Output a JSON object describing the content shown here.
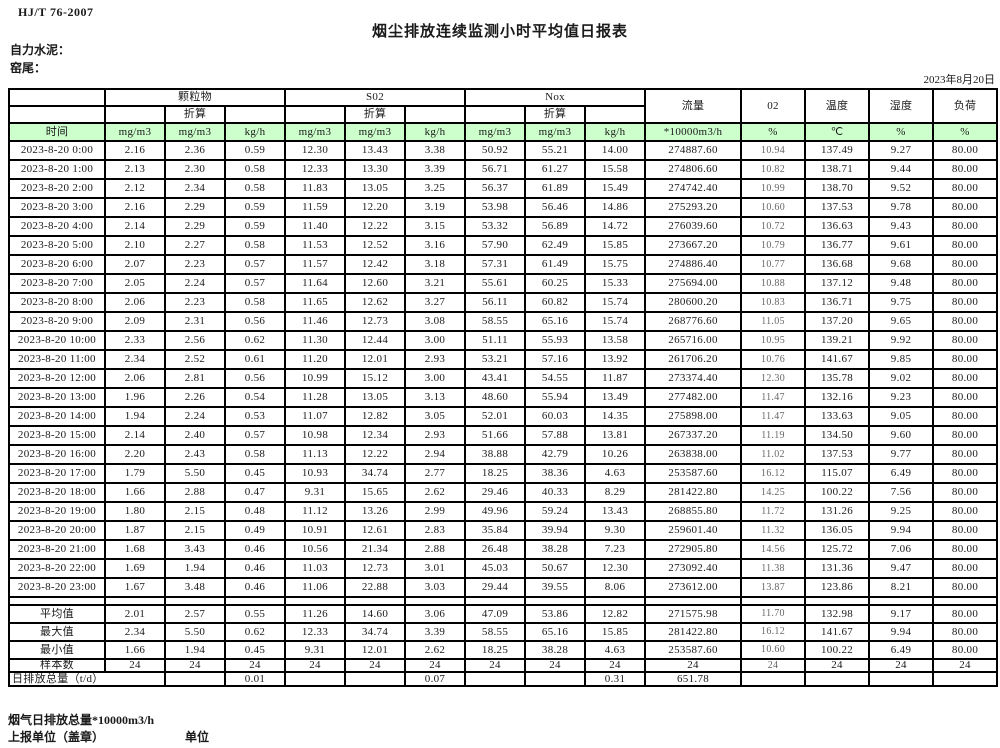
{
  "page": {
    "standard": "HJ/T 76-2007",
    "title": "烟尘排放连续监测小时平均值日报表",
    "company": "自力水泥：",
    "location": "窑尾：",
    "date": "2023年8月20日",
    "footer_total_line": "烟气日排放总量*10000m3/h",
    "footer_report_unit": "上报单位（盖章）",
    "footer_unit": "单位"
  },
  "table": {
    "header": {
      "time_label": "时间",
      "pm_group": "颗粒物",
      "so2_group": "S02",
      "nox_group": "Nox",
      "flow_group": "流量",
      "o2_group": "02",
      "temp_group": "温度",
      "humidity_group": "湿度",
      "load_group": "负荷",
      "converted_label": "折算"
    },
    "units_row": [
      "mg/m3",
      "mg/m3",
      "kg/h",
      "mg/m3",
      "mg/m3",
      "kg/h",
      "mg/m3",
      "mg/m3",
      "kg/h",
      "*10000m3/h",
      "%",
      "℃",
      "%",
      "%"
    ],
    "rows": [
      {
        "time": "2023-8-20 0:00",
        "values": [
          "2.16",
          "2.36",
          "0.59",
          "12.30",
          "13.43",
          "3.38",
          "50.92",
          "55.21",
          "14.00",
          "274887.60",
          "10.94",
          "137.49",
          "9.27",
          "80.00"
        ]
      },
      {
        "time": "2023-8-20 1:00",
        "values": [
          "2.13",
          "2.30",
          "0.58",
          "12.33",
          "13.30",
          "3.39",
          "56.71",
          "61.27",
          "15.58",
          "274806.60",
          "10.82",
          "138.71",
          "9.44",
          "80.00"
        ]
      },
      {
        "time": "2023-8-20 2:00",
        "values": [
          "2.12",
          "2.34",
          "0.58",
          "11.83",
          "13.05",
          "3.25",
          "56.37",
          "61.89",
          "15.49",
          "274742.40",
          "10.99",
          "138.70",
          "9.52",
          "80.00"
        ]
      },
      {
        "time": "2023-8-20 3:00",
        "values": [
          "2.16",
          "2.29",
          "0.59",
          "11.59",
          "12.20",
          "3.19",
          "53.98",
          "56.46",
          "14.86",
          "275293.20",
          "10.60",
          "137.53",
          "9.78",
          "80.00"
        ]
      },
      {
        "time": "2023-8-20 4:00",
        "values": [
          "2.14",
          "2.29",
          "0.59",
          "11.40",
          "12.22",
          "3.15",
          "53.32",
          "56.89",
          "14.72",
          "276039.60",
          "10.72",
          "136.63",
          "9.43",
          "80.00"
        ]
      },
      {
        "time": "2023-8-20 5:00",
        "values": [
          "2.10",
          "2.27",
          "0.58",
          "11.53",
          "12.52",
          "3.16",
          "57.90",
          "62.49",
          "15.85",
          "273667.20",
          "10.79",
          "136.77",
          "9.61",
          "80.00"
        ]
      },
      {
        "time": "2023-8-20 6:00",
        "values": [
          "2.07",
          "2.23",
          "0.57",
          "11.57",
          "12.42",
          "3.18",
          "57.31",
          "61.49",
          "15.75",
          "274886.40",
          "10.77",
          "136.68",
          "9.68",
          "80.00"
        ]
      },
      {
        "time": "2023-8-20 7:00",
        "values": [
          "2.05",
          "2.24",
          "0.57",
          "11.64",
          "12.60",
          "3.21",
          "55.61",
          "60.25",
          "15.33",
          "275694.00",
          "10.88",
          "137.12",
          "9.48",
          "80.00"
        ]
      },
      {
        "time": "2023-8-20 8:00",
        "values": [
          "2.06",
          "2.23",
          "0.58",
          "11.65",
          "12.62",
          "3.27",
          "56.11",
          "60.82",
          "15.74",
          "280600.20",
          "10.83",
          "136.71",
          "9.75",
          "80.00"
        ]
      },
      {
        "time": "2023-8-20 9:00",
        "values": [
          "2.09",
          "2.31",
          "0.56",
          "11.46",
          "12.73",
          "3.08",
          "58.55",
          "65.16",
          "15.74",
          "268776.60",
          "11.05",
          "137.20",
          "9.65",
          "80.00"
        ]
      },
      {
        "time": "2023-8-20 10:00",
        "values": [
          "2.33",
          "2.56",
          "0.62",
          "11.30",
          "12.44",
          "3.00",
          "51.11",
          "55.93",
          "13.58",
          "265716.00",
          "10.95",
          "139.21",
          "9.92",
          "80.00"
        ]
      },
      {
        "time": "2023-8-20 11:00",
        "values": [
          "2.34",
          "2.52",
          "0.61",
          "11.20",
          "12.01",
          "2.93",
          "53.21",
          "57.16",
          "13.92",
          "261706.20",
          "10.76",
          "141.67",
          "9.85",
          "80.00"
        ]
      },
      {
        "time": "2023-8-20 12:00",
        "values": [
          "2.06",
          "2.81",
          "0.56",
          "10.99",
          "15.12",
          "3.00",
          "43.41",
          "54.55",
          "11.87",
          "273374.40",
          "12.30",
          "135.78",
          "9.02",
          "80.00"
        ]
      },
      {
        "time": "2023-8-20 13:00",
        "values": [
          "1.96",
          "2.26",
          "0.54",
          "11.28",
          "13.05",
          "3.13",
          "48.60",
          "55.94",
          "13.49",
          "277482.00",
          "11.47",
          "132.16",
          "9.23",
          "80.00"
        ]
      },
      {
        "time": "2023-8-20 14:00",
        "values": [
          "1.94",
          "2.24",
          "0.53",
          "11.07",
          "12.82",
          "3.05",
          "52.01",
          "60.03",
          "14.35",
          "275898.00",
          "11.47",
          "133.63",
          "9.05",
          "80.00"
        ]
      },
      {
        "time": "2023-8-20 15:00",
        "values": [
          "2.14",
          "2.40",
          "0.57",
          "10.98",
          "12.34",
          "2.93",
          "51.66",
          "57.88",
          "13.81",
          "267337.20",
          "11.19",
          "134.50",
          "9.60",
          "80.00"
        ]
      },
      {
        "time": "2023-8-20 16:00",
        "values": [
          "2.20",
          "2.43",
          "0.58",
          "11.13",
          "12.22",
          "2.94",
          "38.88",
          "42.79",
          "10.26",
          "263838.00",
          "11.02",
          "137.53",
          "9.77",
          "80.00"
        ]
      },
      {
        "time": "2023-8-20 17:00",
        "values": [
          "1.79",
          "5.50",
          "0.45",
          "10.93",
          "34.74",
          "2.77",
          "18.25",
          "38.36",
          "4.63",
          "253587.60",
          "16.12",
          "115.07",
          "6.49",
          "80.00"
        ]
      },
      {
        "time": "2023-8-20 18:00",
        "values": [
          "1.66",
          "2.88",
          "0.47",
          "9.31",
          "15.65",
          "2.62",
          "29.46",
          "40.33",
          "8.29",
          "281422.80",
          "14.25",
          "100.22",
          "7.56",
          "80.00"
        ]
      },
      {
        "time": "2023-8-20 19:00",
        "values": [
          "1.80",
          "2.15",
          "0.48",
          "11.12",
          "13.26",
          "2.99",
          "49.96",
          "59.24",
          "13.43",
          "268855.80",
          "11.72",
          "131.26",
          "9.25",
          "80.00"
        ]
      },
      {
        "time": "2023-8-20 20:00",
        "values": [
          "1.87",
          "2.15",
          "0.49",
          "10.91",
          "12.61",
          "2.83",
          "35.84",
          "39.94",
          "9.30",
          "259601.40",
          "11.32",
          "136.05",
          "9.94",
          "80.00"
        ]
      },
      {
        "time": "2023-8-20 21:00",
        "values": [
          "1.68",
          "3.43",
          "0.46",
          "10.56",
          "21.34",
          "2.88",
          "26.48",
          "38.28",
          "7.23",
          "272905.80",
          "14.56",
          "125.72",
          "7.06",
          "80.00"
        ]
      },
      {
        "time": "2023-8-20 22:00",
        "values": [
          "1.69",
          "1.94",
          "0.46",
          "11.03",
          "12.73",
          "3.01",
          "45.03",
          "50.67",
          "12.30",
          "273092.40",
          "11.38",
          "131.36",
          "9.47",
          "80.00"
        ]
      },
      {
        "time": "2023-8-20 23:00",
        "values": [
          "1.67",
          "3.48",
          "0.46",
          "11.06",
          "22.88",
          "3.03",
          "29.44",
          "39.55",
          "8.06",
          "273612.00",
          "13.87",
          "123.86",
          "8.21",
          "80.00"
        ]
      }
    ],
    "summary": [
      {
        "label": "平均值",
        "values": [
          "2.01",
          "2.57",
          "0.55",
          "11.26",
          "14.60",
          "3.06",
          "47.09",
          "53.86",
          "12.82",
          "271575.98",
          "11.70",
          "132.98",
          "9.17",
          "80.00"
        ]
      },
      {
        "label": "最大值",
        "values": [
          "2.34",
          "5.50",
          "0.62",
          "12.33",
          "34.74",
          "3.39",
          "58.55",
          "65.16",
          "15.85",
          "281422.80",
          "16.12",
          "141.67",
          "9.94",
          "80.00"
        ]
      },
      {
        "label": "最小值",
        "values": [
          "1.66",
          "1.94",
          "0.45",
          "9.31",
          "12.01",
          "2.62",
          "18.25",
          "38.28",
          "4.63",
          "253587.60",
          "10.60",
          "100.22",
          "6.49",
          "80.00"
        ]
      },
      {
        "label": "样本数",
        "values": [
          "24",
          "24",
          "24",
          "24",
          "24",
          "24",
          "24",
          "24",
          "24",
          "24",
          "24",
          "24",
          "24",
          "24"
        ]
      }
    ],
    "daily_total": {
      "label": "日排放总量（t/d）",
      "values": [
        "",
        "0.01",
        "",
        "",
        "0.07",
        "",
        "",
        "0.31",
        "651.78",
        "",
        "",
        "",
        ""
      ]
    }
  }
}
